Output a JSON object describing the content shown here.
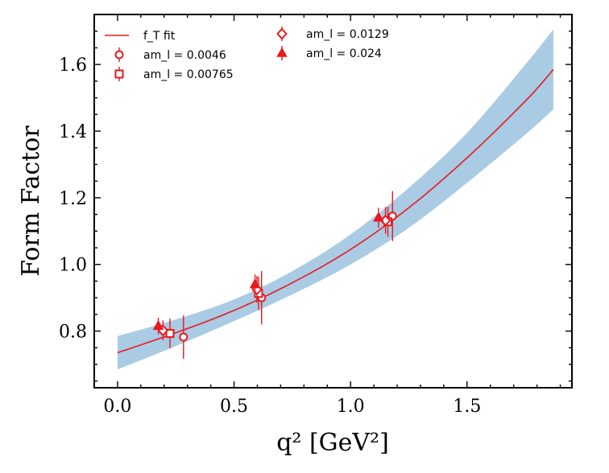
{
  "chart_data": {
    "type": "scatter",
    "title": "",
    "xlabel": "q² [GeV²]",
    "ylabel": "Form Factor",
    "xlim": [
      -0.1,
      1.95
    ],
    "ylim": [
      0.63,
      1.75
    ],
    "xticks": [
      0.0,
      0.5,
      1.0,
      1.5
    ],
    "yticks": [
      0.8,
      1.0,
      1.2,
      1.4,
      1.6
    ],
    "xtick_labels": [
      "0.0",
      "0.5",
      "1.0",
      "1.5"
    ],
    "ytick_labels": [
      "0.8",
      "1.0",
      "1.2",
      "1.4",
      "1.6"
    ],
    "grid": false,
    "legend_location": "top-left",
    "colors": {
      "fit": "#e8191f",
      "band": "#a9cbe4",
      "points": "#e8191f"
    },
    "fit": {
      "label": "f_T fit",
      "x": [
        0.0,
        0.25,
        0.5,
        0.75,
        1.0,
        1.25,
        1.5,
        1.75,
        1.87
      ],
      "y": [
        0.735,
        0.795,
        0.862,
        0.945,
        1.045,
        1.17,
        1.32,
        1.49,
        1.585
      ],
      "y_low": [
        0.685,
        0.755,
        0.83,
        0.91,
        1.0,
        1.11,
        1.245,
        1.39,
        1.465
      ],
      "y_high": [
        0.785,
        0.835,
        0.895,
        0.98,
        1.09,
        1.23,
        1.395,
        1.6,
        1.705
      ]
    },
    "series": [
      {
        "name": "am_l = 0.0046",
        "marker": "circle",
        "points": [
          {
            "x": 0.283,
            "y": 0.782,
            "err": 0.065
          },
          {
            "x": 0.618,
            "y": 0.9,
            "err": 0.08
          },
          {
            "x": 1.18,
            "y": 1.145,
            "err": 0.075
          }
        ]
      },
      {
        "name": "am_l = 0.00765",
        "marker": "square",
        "points": [
          {
            "x": 0.225,
            "y": 0.793,
            "err": 0.045
          },
          {
            "x": 0.605,
            "y": 0.913,
            "err": 0.05
          },
          {
            "x": 1.16,
            "y": 1.128,
            "err": 0.045
          }
        ]
      },
      {
        "name": "am_l = 0.0129",
        "marker": "diamond",
        "points": [
          {
            "x": 0.195,
            "y": 0.802,
            "err": 0.03
          },
          {
            "x": 0.598,
            "y": 0.925,
            "err": 0.04
          },
          {
            "x": 1.15,
            "y": 1.132,
            "err": 0.04
          }
        ]
      },
      {
        "name": "am_l = 0.024",
        "marker": "triangle",
        "points": [
          {
            "x": 0.175,
            "y": 0.815,
            "err": 0.025
          },
          {
            "x": 0.59,
            "y": 0.94,
            "err": 0.03
          },
          {
            "x": 1.12,
            "y": 1.14,
            "err": 0.03
          }
        ]
      }
    ]
  }
}
